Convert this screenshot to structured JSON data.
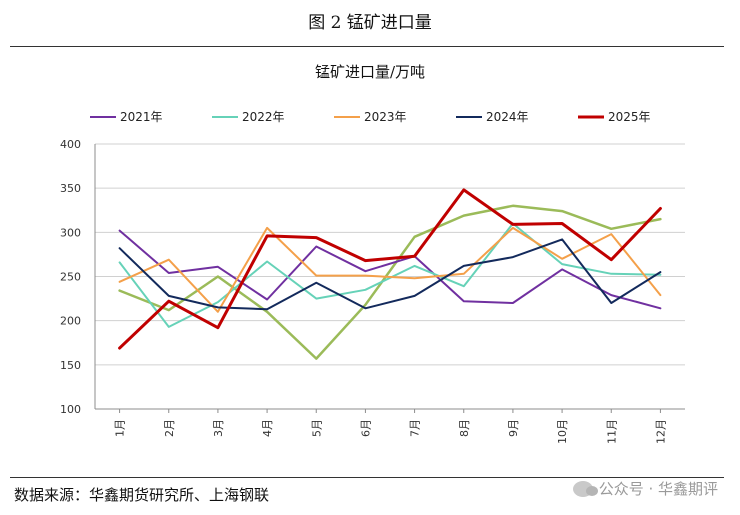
{
  "figure": {
    "title": "图 2  锰矿进口量",
    "source": "数据来源：华鑫期货研究所、上海钢联",
    "watermark": "公众号 · 华鑫期评"
  },
  "chart_data": {
    "type": "line",
    "title": "锰矿进口量/万吨",
    "categories": [
      "1月",
      "2月",
      "3月",
      "4月",
      "5月",
      "6月",
      "7月",
      "8月",
      "9月",
      "10月",
      "11月",
      "12月"
    ],
    "ylim": [
      100,
      400
    ],
    "yticks": [
      100,
      150,
      200,
      250,
      300,
      350,
      400
    ],
    "grid": true,
    "legend_position": "top",
    "series": [
      {
        "name": "2021年",
        "color": "#7030A0",
        "width": 2,
        "values": [
          302,
          254,
          261,
          224,
          284,
          256,
          273,
          222,
          220,
          258,
          229,
          214
        ]
      },
      {
        "name": "2022年",
        "color": "#66D2B8",
        "width": 2,
        "values": [
          266,
          193,
          221,
          267,
          225,
          235,
          262,
          239,
          310,
          264,
          253,
          252
        ]
      },
      {
        "name": "2023年",
        "color": "#F4A04A",
        "width": 2,
        "values": [
          244,
          269,
          210,
          305,
          251,
          251,
          248,
          253,
          305,
          270,
          298,
          229
        ]
      },
      {
        "name": "2024年",
        "color": "#132A5C",
        "width": 2,
        "values": [
          282,
          228,
          215,
          213,
          243,
          214,
          228,
          262,
          272,
          292,
          220,
          255
        ]
      },
      {
        "name": "2025年",
        "color": "#C00000",
        "width": 3,
        "values": [
          169,
          222,
          192,
          296,
          294,
          268,
          273,
          348,
          309,
          310,
          269,
          327
        ]
      },
      {
        "name": "",
        "color": "#9BBB59",
        "width": 2.5,
        "in_legend": false,
        "values": [
          234,
          212,
          250,
          210,
          157,
          218,
          295,
          319,
          330,
          324,
          304,
          315
        ]
      }
    ]
  }
}
